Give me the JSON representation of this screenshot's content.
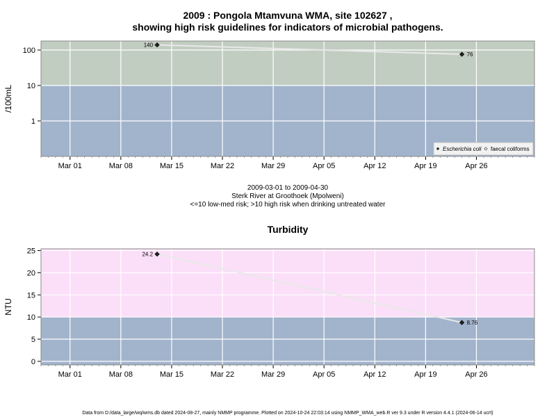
{
  "chart_data": [
    {
      "type": "line",
      "title_line1": "2009 : Pongola Mtamvuna WMA, site 102627 ,",
      "title_line2": "showing high risk guidelines for indicators of microbial pathogens.",
      "ylabel": "/100mL",
      "y_scale": "log",
      "ylim": [
        0.1,
        180
      ],
      "y_ticks": [
        1,
        10,
        100
      ],
      "y_tick_labels": [
        "1",
        "10",
        "100"
      ],
      "xlim": [
        "2009-02-25",
        "2009-05-04"
      ],
      "x_ticks": [
        "2009-03-01",
        "2009-03-08",
        "2009-03-15",
        "2009-03-22",
        "2009-03-29",
        "2009-04-05",
        "2009-04-12",
        "2009-04-19",
        "2009-04-26"
      ],
      "x_tick_labels": [
        "Mar 01",
        "Mar 08",
        "Mar 15",
        "Mar 22",
        "Mar 29",
        "Apr 05",
        "Apr 12",
        "Apr 19",
        "Apr 26"
      ],
      "bands": [
        {
          "from": 0.1,
          "to": 10,
          "color": "#a2b4cc"
        },
        {
          "from": 10,
          "to": 180,
          "color": "#c2cdc2"
        }
      ],
      "grid": true,
      "series": [
        {
          "name": "Escherichia coli",
          "marker": "filled-diamond",
          "x": [
            "2009-03-13",
            "2009-04-24"
          ],
          "y": [
            140,
            76
          ],
          "point_labels": [
            "140",
            "76"
          ]
        }
      ],
      "legend": {
        "position": "bottom-right",
        "entries": [
          "Escherichia coli",
          "faecal coliforms"
        ]
      },
      "caption_lines": [
        "2009-03-01 to 2009-04-30",
        "Sterk River at Groothoek (Mpolweni)",
        "<=10 low-med risk; >10 high risk when drinking untreated water"
      ]
    },
    {
      "type": "line",
      "title": "Turbidity",
      "ylabel": "NTU",
      "y_scale": "linear",
      "ylim": [
        -0.8,
        25.4
      ],
      "y_ticks": [
        0,
        5,
        10,
        15,
        20,
        25
      ],
      "y_tick_labels": [
        "0",
        "5",
        "10",
        "15",
        "20",
        "25"
      ],
      "xlim": [
        "2009-02-25",
        "2009-05-04"
      ],
      "x_ticks": [
        "2009-03-01",
        "2009-03-08",
        "2009-03-15",
        "2009-03-22",
        "2009-03-29",
        "2009-04-05",
        "2009-04-12",
        "2009-04-19",
        "2009-04-26"
      ],
      "x_tick_labels": [
        "Mar 01",
        "Mar 08",
        "Mar 15",
        "Mar 22",
        "Mar 29",
        "Apr 05",
        "Apr 12",
        "Apr 19",
        "Apr 26"
      ],
      "bands": [
        {
          "from": -0.8,
          "to": 10,
          "color": "#a2b4cc"
        },
        {
          "from": 10,
          "to": 25.4,
          "color": "#fbdff8"
        }
      ],
      "grid": true,
      "series": [
        {
          "marker": "filled-diamond",
          "x": [
            "2009-03-13",
            "2009-04-24"
          ],
          "y": [
            24.2,
            8.76
          ],
          "point_labels": [
            "24.2",
            "8.76"
          ]
        }
      ]
    }
  ],
  "footer": "Data from D:/data_large/wq/wms.db dated 2024-08-27, mainly NMMP programme. Plotted on 2024-10-24 22:03:14 using NMMP_WMA_web.R ver 9.3 under R version 4.4.1 (2024-06-14 ucrt)"
}
